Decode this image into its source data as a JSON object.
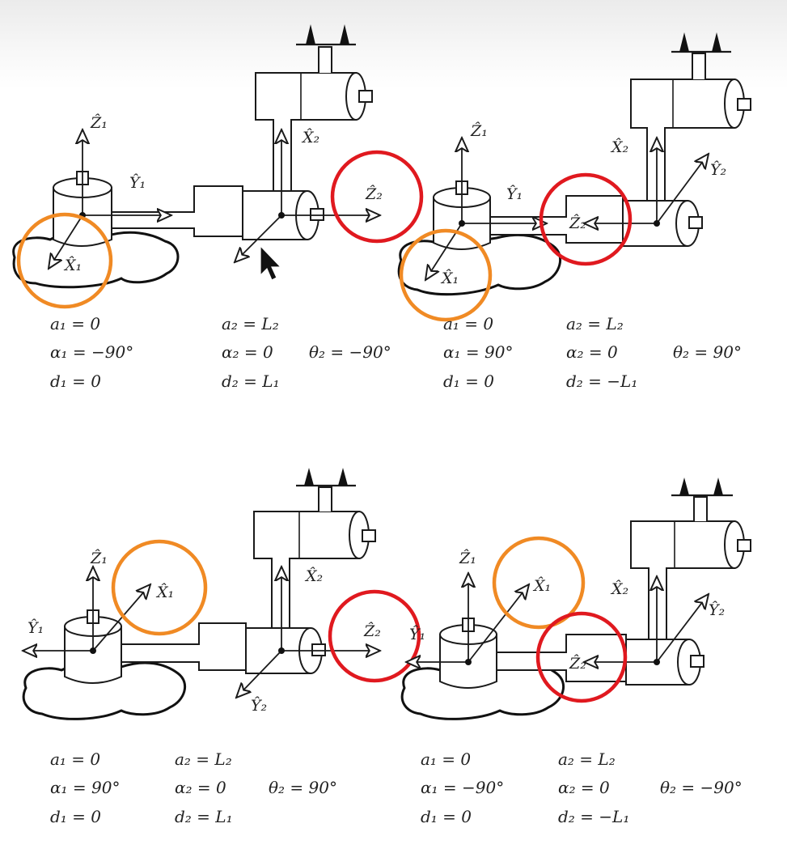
{
  "colors": {
    "highlight_orange": "#f08a24",
    "highlight_red": "#e0191f",
    "ink": "#1a1a1a"
  },
  "icons": {
    "cursor": "mouse-pointer-arrow-icon"
  },
  "panels": [
    {
      "axis_labels": {
        "z1": "Ẑ₁",
        "y1": "Ŷ₁",
        "x1": "X̂₁",
        "x2": "X̂₂",
        "z2": "Ẑ₂"
      },
      "params": {
        "a1": "a₁ = 0",
        "alpha1": "α₁ = −90°",
        "d1": "d₁ = 0",
        "a2": "a₂ = L₂",
        "alpha2": "α₂ = 0",
        "d2": "d₂ = L₁",
        "theta2": "θ₂ = −90°"
      }
    },
    {
      "axis_labels": {
        "z1": "Ẑ₁",
        "y1": "Ŷ₁",
        "x1": "X̂₁",
        "x2": "X̂₂",
        "y2": "Ŷ₂",
        "z2": "Ẑ₂"
      },
      "params": {
        "a1": "a₁ = 0",
        "alpha1": "α₁ = 90°",
        "d1": "d₁ = 0",
        "a2": "a₂ = L₂",
        "alpha2": "α₂ = 0",
        "d2": "d₂ = −L₁",
        "theta2": "θ₂ = 90°"
      }
    },
    {
      "axis_labels": {
        "z1": "Ẑ₁",
        "y1": "Ŷ₁",
        "x1": "X̂₁",
        "x2": "X̂₂",
        "y2": "Ŷ₂",
        "z2": "Ẑ₂"
      },
      "params": {
        "a1": "a₁ = 0",
        "alpha1": "α₁ = 90°",
        "d1": "d₁ = 0",
        "a2": "a₂ = L₂",
        "alpha2": "α₂ = 0",
        "d2": "d₂ = L₁",
        "theta2": "θ₂ = 90°"
      }
    },
    {
      "axis_labels": {
        "z1": "Ẑ₁",
        "y1": "Ŷ₁",
        "x1": "X̂₁",
        "x2": "X̂₂",
        "y2": "Ŷ₂",
        "z2": "Ẑ₂"
      },
      "params": {
        "a1": "a₁ = 0",
        "alpha1": "α₁ = −90°",
        "d1": "d₁ = 0",
        "a2": "a₂ = L₂",
        "alpha2": "α₂ = 0",
        "d2": "d₂ = −L₁",
        "theta2": "θ₂ = −90°"
      }
    }
  ]
}
